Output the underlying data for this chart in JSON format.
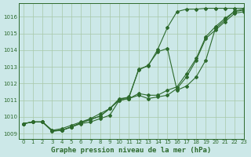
{
  "title": "Graphe pression niveau de la mer (hPa)",
  "bg_color": "#cce8e8",
  "grid_color": "#a8c8a8",
  "line_color": "#2d6a2d",
  "xlim": [
    -0.5,
    23
  ],
  "ylim": [
    1008.7,
    1016.8
  ],
  "yticks": [
    1009,
    1010,
    1011,
    1012,
    1013,
    1014,
    1015,
    1016
  ],
  "xticks": [
    0,
    1,
    2,
    3,
    4,
    5,
    6,
    7,
    8,
    9,
    10,
    11,
    12,
    13,
    14,
    15,
    16,
    17,
    18,
    19,
    20,
    21,
    22,
    23
  ],
  "series1": [
    1009.6,
    1009.7,
    1009.7,
    1009.2,
    1009.2,
    1009.4,
    1009.6,
    1009.7,
    1009.9,
    1010.1,
    1011.0,
    1011.1,
    1011.3,
    1011.1,
    1011.2,
    1011.3,
    1011.7,
    1012.4,
    1013.4,
    1014.7,
    1015.2,
    1015.7,
    1016.2,
    1016.3
  ],
  "series2": [
    1009.6,
    1009.7,
    1009.7,
    1009.2,
    1009.3,
    1009.5,
    1009.7,
    1009.9,
    1010.2,
    1010.5,
    1011.0,
    1011.1,
    1011.4,
    1011.3,
    1011.3,
    1011.6,
    1011.8,
    1012.6,
    1013.5,
    1014.8,
    1015.4,
    1015.9,
    1016.3,
    1016.4
  ],
  "series3": [
    1009.6,
    1009.7,
    1009.7,
    1009.15,
    1009.2,
    1009.4,
    1009.65,
    1009.85,
    1010.05,
    1010.5,
    1011.05,
    1011.2,
    1012.8,
    1013.1,
    1013.9,
    1014.1,
    1011.6,
    1011.85,
    1012.4,
    1013.4,
    1015.3,
    1015.8,
    1016.35,
    1016.45
  ],
  "series4": [
    1009.6,
    1009.7,
    1009.7,
    1009.15,
    1009.2,
    1009.4,
    1009.65,
    1009.85,
    1010.05,
    1010.5,
    1011.1,
    1011.15,
    1012.85,
    1013.05,
    1014.05,
    1015.35,
    1016.3,
    1016.45,
    1016.45,
    1016.5,
    1016.5,
    1016.5,
    1016.5,
    1016.5
  ]
}
